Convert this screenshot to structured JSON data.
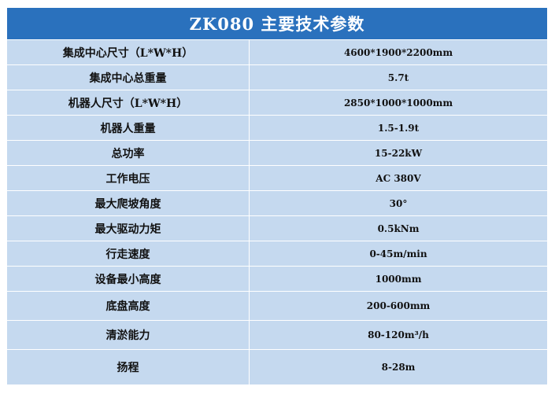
{
  "title": "ZK080 主要技术参数",
  "rows": [
    {
      "label": "集成中心尺寸（L*W*H）",
      "value": "4600*1900*2200mm"
    },
    {
      "label": "集成中心总重量",
      "value": "5.7t"
    },
    {
      "label": "机器人尺寸（L*W*H）",
      "value": "2850*1000*1000mm"
    },
    {
      "label": "机器人重量",
      "value": "1.5-1.9t"
    },
    {
      "label": "总功率",
      "value": "15-22kW"
    },
    {
      "label": "工作电压",
      "value": "AC 380V"
    },
    {
      "label": "最大爬坡角度",
      "value": "30°"
    },
    {
      "label": "最大驱动力矩",
      "value": "0.5kNm"
    },
    {
      "label": "行走速度",
      "value": "0-45m/min"
    },
    {
      "label": "设备最小高度",
      "value": "1000mm"
    },
    {
      "label": "底盘高度",
      "value": "200-600mm"
    },
    {
      "label": "清淤能力",
      "value": "80-120m³/h"
    },
    {
      "label": "扬程",
      "value": "8-28m"
    }
  ],
  "colors": {
    "header_bg": "#2a71bd",
    "row_bg": "#c5d9ef",
    "border": "#ffffff"
  }
}
